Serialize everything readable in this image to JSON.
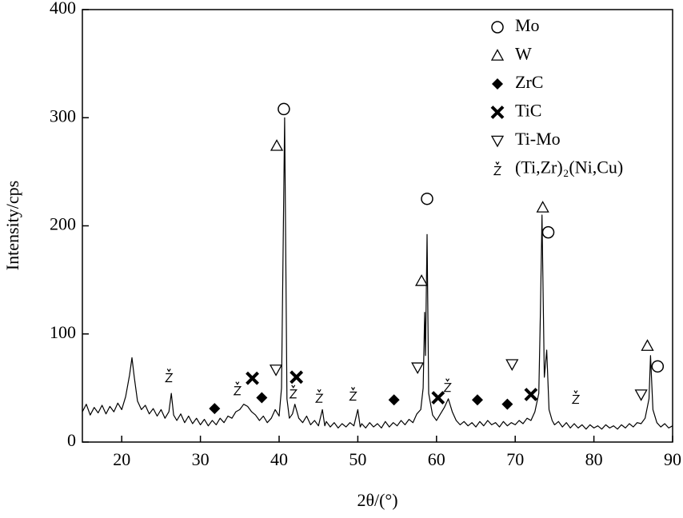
{
  "chart_data": {
    "type": "line",
    "xlabel": "2θ/(°)",
    "ylabel": "Intensity/cps",
    "xlim": [
      15,
      90
    ],
    "xticks": [
      20,
      30,
      40,
      50,
      60,
      70,
      80,
      90
    ],
    "ylim": [
      0,
      400
    ],
    "yticks": [
      0,
      100,
      200,
      300,
      400
    ],
    "color": "#000000",
    "legend": "top-right",
    "x": [
      15,
      15.5,
      16,
      16.5,
      17,
      17.5,
      18,
      18.5,
      19,
      19.5,
      20,
      20.5,
      21,
      21.3,
      21.6,
      22,
      22.5,
      23,
      23.5,
      24,
      24.5,
      25,
      25.5,
      26,
      26.3,
      26.6,
      27,
      27.5,
      28,
      28.5,
      29,
      29.5,
      30,
      30.5,
      31,
      31.5,
      32,
      32.5,
      33,
      33.5,
      34,
      34.5,
      35,
      35.5,
      36,
      36.5,
      37,
      37.5,
      38,
      38.5,
      39,
      39.5,
      40,
      40.3,
      40.7,
      41,
      41.3,
      41.7,
      42,
      42.5,
      43,
      43.5,
      44,
      44.5,
      45,
      45.5,
      45.8,
      46,
      46.5,
      47,
      47.5,
      48,
      48.5,
      49,
      49.5,
      50,
      50.3,
      50.5,
      51,
      51.5,
      52,
      52.5,
      53,
      53.5,
      54,
      54.5,
      55,
      55.5,
      56,
      56.5,
      57,
      57.5,
      58,
      58.3,
      58.5,
      58.6,
      58.8,
      59,
      59.5,
      60,
      60.5,
      61,
      61.5,
      62,
      62.5,
      63,
      63.5,
      64,
      64.5,
      65,
      65.5,
      66,
      66.5,
      67,
      67.5,
      68,
      68.5,
      69,
      69.5,
      70,
      70.5,
      71,
      71.5,
      72,
      72.5,
      73,
      73.2,
      73.4,
      73.7,
      74,
      74.3,
      74.7,
      75,
      75.5,
      76,
      76.5,
      77,
      77.5,
      78,
      78.5,
      79,
      79.5,
      80,
      80.5,
      81,
      81.5,
      82,
      82.5,
      83,
      83.5,
      84,
      84.5,
      85,
      85.5,
      86,
      86.5,
      87,
      87.2,
      87.5,
      88,
      88.5,
      89,
      89.5,
      90
    ],
    "values": [
      28,
      35,
      25,
      32,
      27,
      34,
      26,
      33,
      28,
      36,
      30,
      42,
      62,
      78,
      60,
      38,
      30,
      34,
      26,
      31,
      24,
      30,
      22,
      28,
      45,
      25,
      20,
      26,
      18,
      24,
      17,
      22,
      16,
      21,
      15,
      20,
      16,
      22,
      18,
      24,
      22,
      28,
      30,
      35,
      33,
      28,
      25,
      20,
      24,
      18,
      22,
      30,
      24,
      50,
      300,
      40,
      22,
      26,
      35,
      22,
      18,
      24,
      16,
      20,
      15,
      30,
      15,
      19,
      14,
      18,
      13,
      17,
      14,
      18,
      15,
      30,
      14,
      17,
      13,
      18,
      14,
      17,
      13,
      19,
      14,
      18,
      15,
      20,
      16,
      21,
      18,
      26,
      30,
      50,
      120,
      80,
      192,
      45,
      25,
      20,
      26,
      32,
      40,
      28,
      20,
      16,
      19,
      15,
      18,
      14,
      19,
      15,
      20,
      16,
      18,
      14,
      19,
      15,
      18,
      16,
      20,
      17,
      22,
      20,
      28,
      45,
      120,
      210,
      60,
      85,
      30,
      20,
      16,
      19,
      14,
      18,
      13,
      17,
      13,
      16,
      12,
      16,
      13,
      15,
      12,
      16,
      13,
      15,
      12,
      16,
      13,
      17,
      14,
      18,
      17,
      22,
      40,
      80,
      30,
      18,
      14,
      17,
      13,
      15
    ],
    "series": [
      {
        "name": "Mo",
        "marker": "circle",
        "x": [
          40.6,
          58.8,
          74.2,
          88.1
        ],
        "values": [
          308,
          225,
          194,
          70
        ]
      },
      {
        "name": "W",
        "marker": "triangle-up",
        "x": [
          39.7,
          58.1,
          73.5,
          86.8
        ],
        "values": [
          274,
          149,
          217,
          89
        ]
      },
      {
        "name": "ZrC",
        "marker": "diamond",
        "x": [
          31.8,
          37.8,
          54.6,
          65.2,
          69.0
        ],
        "values": [
          31,
          41,
          39,
          39,
          35
        ]
      },
      {
        "name": "TiC",
        "marker": "cross",
        "x": [
          36.6,
          42.2,
          60.2,
          72.0
        ],
        "values": [
          59,
          60,
          41,
          44
        ]
      },
      {
        "name": "Ti-Mo",
        "marker": "triangle-down",
        "x": [
          39.6,
          57.6,
          69.6,
          86.0
        ],
        "values": [
          67,
          69,
          72,
          44
        ]
      },
      {
        "name": "(Ti,Zr)₂(Ni,Cu)",
        "marker": "zcaron",
        "x": [
          26.0,
          34.7,
          41.8,
          45.1,
          49.4,
          61.4,
          77.7
        ],
        "values": [
          61,
          49,
          46,
          42,
          44,
          52,
          41
        ]
      }
    ]
  }
}
